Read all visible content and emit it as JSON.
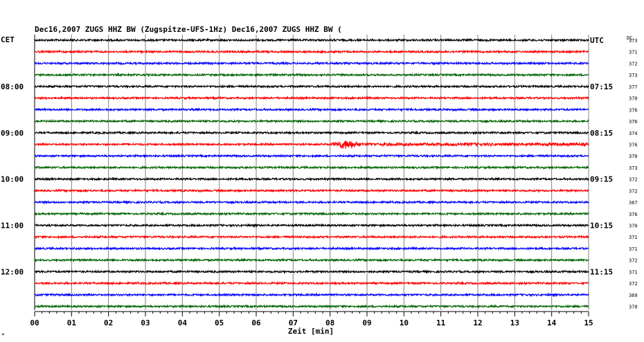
{
  "header": {
    "text": "Dec16,2007   ZUGS HHZ BW (Zugspitze-UFS-1Hz) Dec16,2007   ZUGS HHZ BW ("
  },
  "left_zone_label": "CET",
  "right_zone_label": "UTC",
  "dc_header": "DC",
  "corner_mark": "*",
  "colors": {
    "trace_cycle": [
      "#000000",
      "#ff0000",
      "#0000ff",
      "#006400"
    ],
    "grid": "#808080",
    "background": "#ffffff"
  },
  "chart_data": {
    "type": "line",
    "title": "Dec16,2007   ZUGS HHZ BW (Zugspitze-UFS-1Hz) Dec16,2007   ZUGS HHZ BW (",
    "xlabel": "Zeit [min]",
    "ylabel": "",
    "xlim": [
      0,
      15
    ],
    "x_ticks": [
      "00",
      "01",
      "02",
      "03",
      "04",
      "05",
      "06",
      "07",
      "08",
      "09",
      "10",
      "11",
      "12",
      "13",
      "14",
      "15"
    ],
    "left_time_labels": [
      {
        "row": 4,
        "label": "08:00"
      },
      {
        "row": 8,
        "label": "09:00"
      },
      {
        "row": 12,
        "label": "10:00"
      },
      {
        "row": 16,
        "label": "11:00"
      },
      {
        "row": 20,
        "label": "12:00"
      }
    ],
    "right_time_labels": [
      {
        "row": 0,
        "label": "UTC"
      },
      {
        "row": 4,
        "label": "07:15"
      },
      {
        "row": 8,
        "label": "08:15"
      },
      {
        "row": 12,
        "label": "09:15"
      },
      {
        "row": 16,
        "label": "10:15"
      },
      {
        "row": 20,
        "label": "11:15"
      }
    ],
    "dc_offsets": [
      373,
      371,
      372,
      373,
      377,
      370,
      376,
      376,
      374,
      376,
      370,
      373,
      372,
      372,
      367,
      376,
      370,
      371,
      371,
      372,
      371,
      372,
      369,
      370
    ],
    "event": {
      "row": 9,
      "start_min": 8.0,
      "peak_min": 8.45,
      "end_min": 9.0
    },
    "grid": true,
    "traces_per_hour": 4,
    "trace_count": 24
  }
}
